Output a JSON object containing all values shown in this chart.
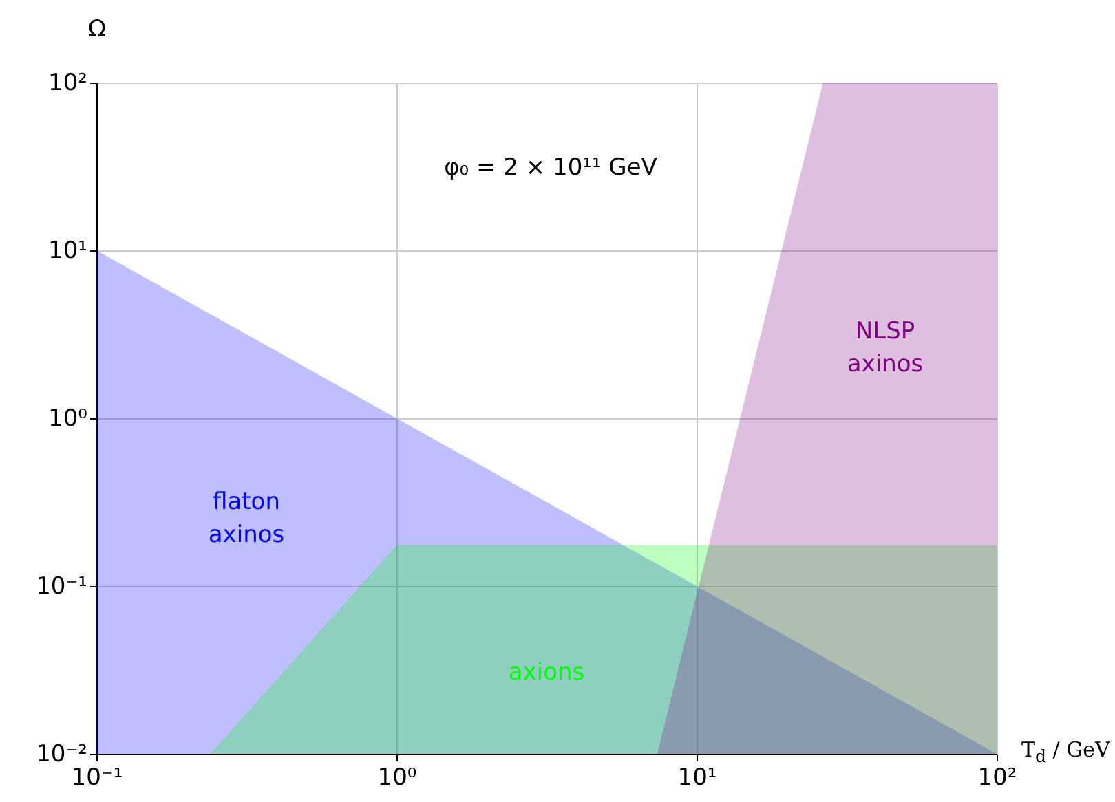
{
  "chart_data": {
    "type": "area",
    "xlabel": "T$_{d}$ / GeV",
    "ylabel": "Ω",
    "log": "xy",
    "grid": true,
    "xlim": [
      0.1,
      100
    ],
    "ylim": [
      0.01,
      100
    ],
    "xticks": [
      {
        "value": 0.1,
        "label": "10⁻¹"
      },
      {
        "value": 1,
        "label": "10⁰"
      },
      {
        "value": 10,
        "label": "10¹"
      },
      {
        "value": 100,
        "label": "10²"
      }
    ],
    "yticks": [
      {
        "value": 0.01,
        "label": "10⁻²"
      },
      {
        "value": 0.1,
        "label": "10⁻¹"
      },
      {
        "value": 1,
        "label": "10⁰"
      },
      {
        "value": 10,
        "label": "10¹"
      },
      {
        "value": 100,
        "label": "10²"
      }
    ],
    "series": [
      {
        "name": "flaton axinos",
        "color": "#0000ff",
        "x": [
          0.1,
          100
        ],
        "values": [
          10,
          0.01
        ]
      },
      {
        "name": "axions",
        "color": "#00ff00",
        "x": [
          0.24,
          1,
          100
        ],
        "values": [
          0.01,
          0.175,
          0.175
        ]
      },
      {
        "name": "NLSP axinos",
        "color": "#800080",
        "x": [
          7.4,
          26.4,
          100
        ],
        "values": [
          0.01,
          100,
          100
        ]
      }
    ],
    "annotations": [
      "φ₀ = 2 × 10¹¹ GeV"
    ]
  }
}
